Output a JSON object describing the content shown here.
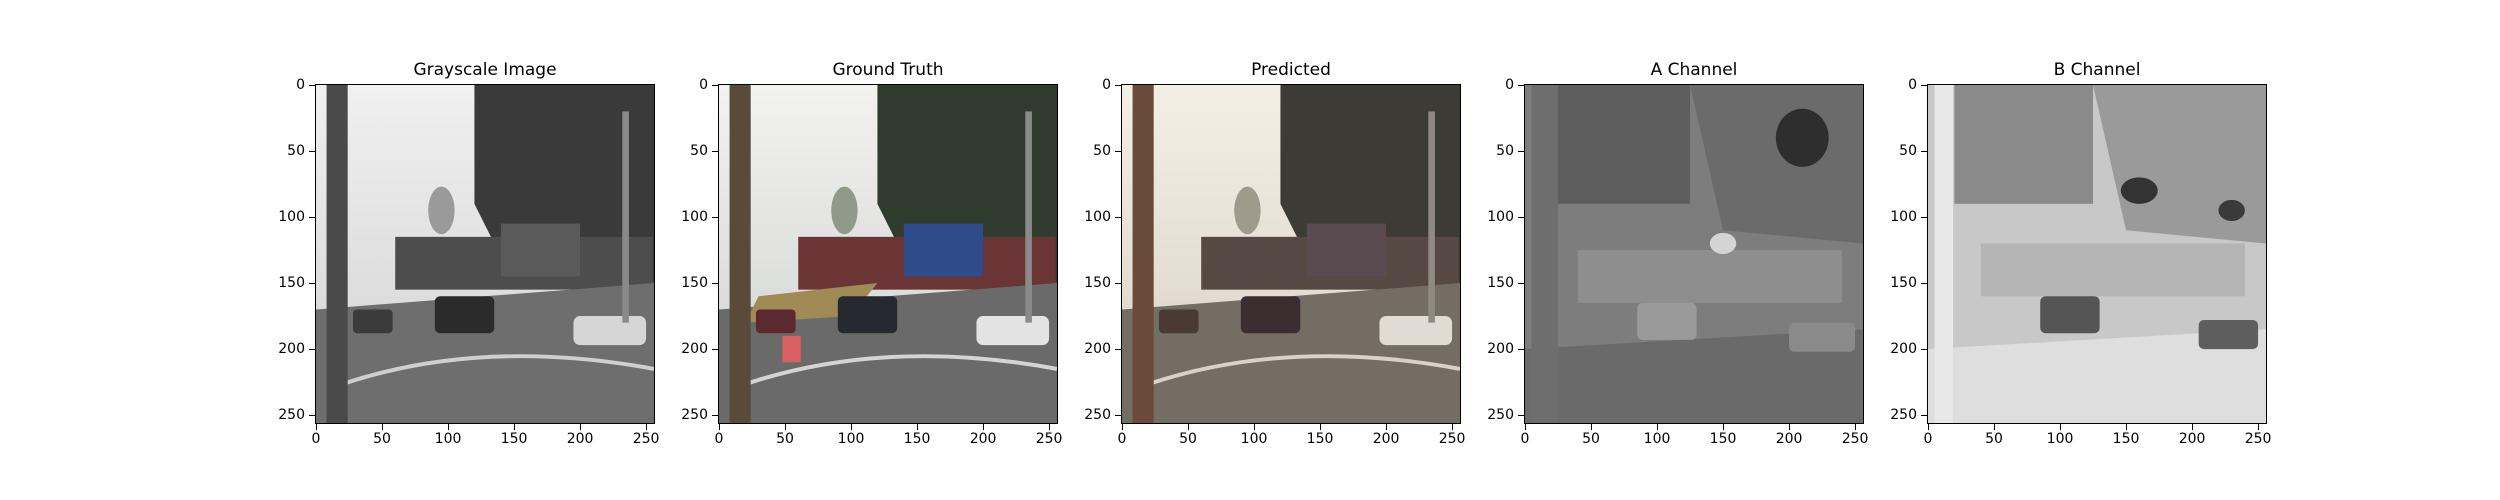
{
  "figure": {
    "panels": [
      {
        "title": "Grayscale Image",
        "kind": "gray"
      },
      {
        "title": "Ground Truth",
        "kind": "color"
      },
      {
        "title": "Predicted",
        "kind": "predicted"
      },
      {
        "title": "A Channel",
        "kind": "a-channel"
      },
      {
        "title": "B Channel",
        "kind": "b-channel"
      }
    ],
    "axis": {
      "xlim": [
        0,
        256
      ],
      "ylim": [
        256,
        0
      ],
      "xticks": [
        "0",
        "50",
        "100",
        "150",
        "200",
        "250"
      ],
      "yticks": [
        "0",
        "50",
        "100",
        "150",
        "200",
        "250"
      ]
    },
    "colors": {
      "frame": "#000000",
      "background": "#ffffff"
    }
  }
}
